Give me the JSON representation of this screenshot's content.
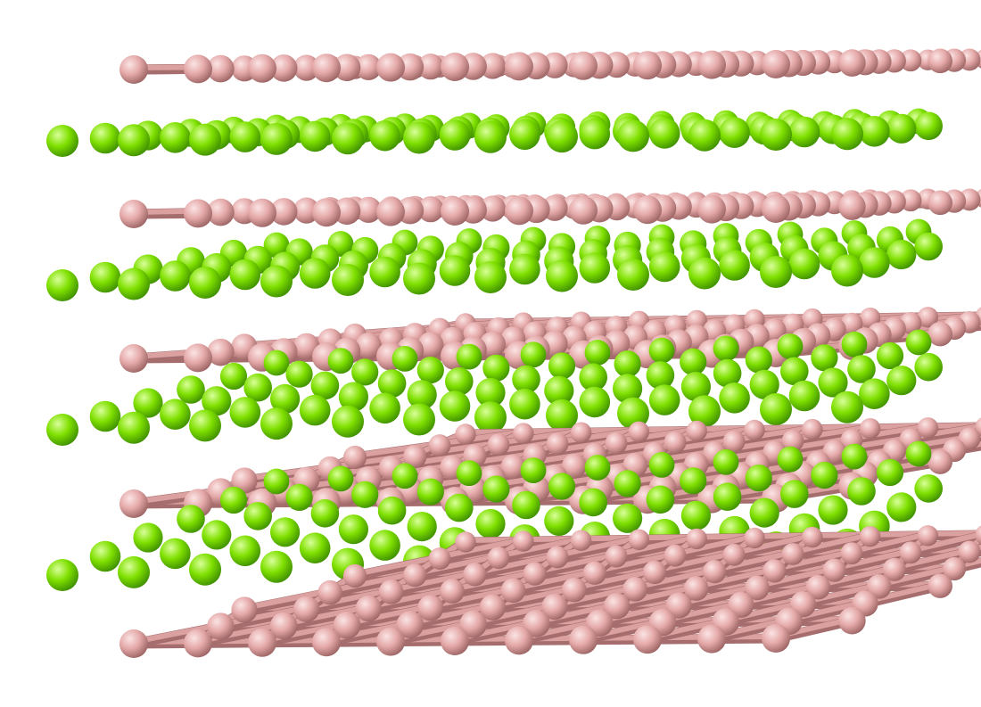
{
  "image": {
    "subject": "crystal-structure-ball-and-stick-model",
    "background_color": "#ffffff"
  },
  "atoms": {
    "boron": {
      "color_highlight": "#fbe4e4",
      "color_base": "#e5a9a9",
      "color_shadow": "#9c6464",
      "bond_color": "#dba0a0",
      "bond_shadow": "#a56d6d"
    },
    "magnesium": {
      "color_highlight": "#d9ff9a",
      "color_base": "#7fe000",
      "color_shadow": "#3f8f00"
    }
  },
  "structure": {
    "boron_layers": 5,
    "magnesium_layers": 4
  }
}
